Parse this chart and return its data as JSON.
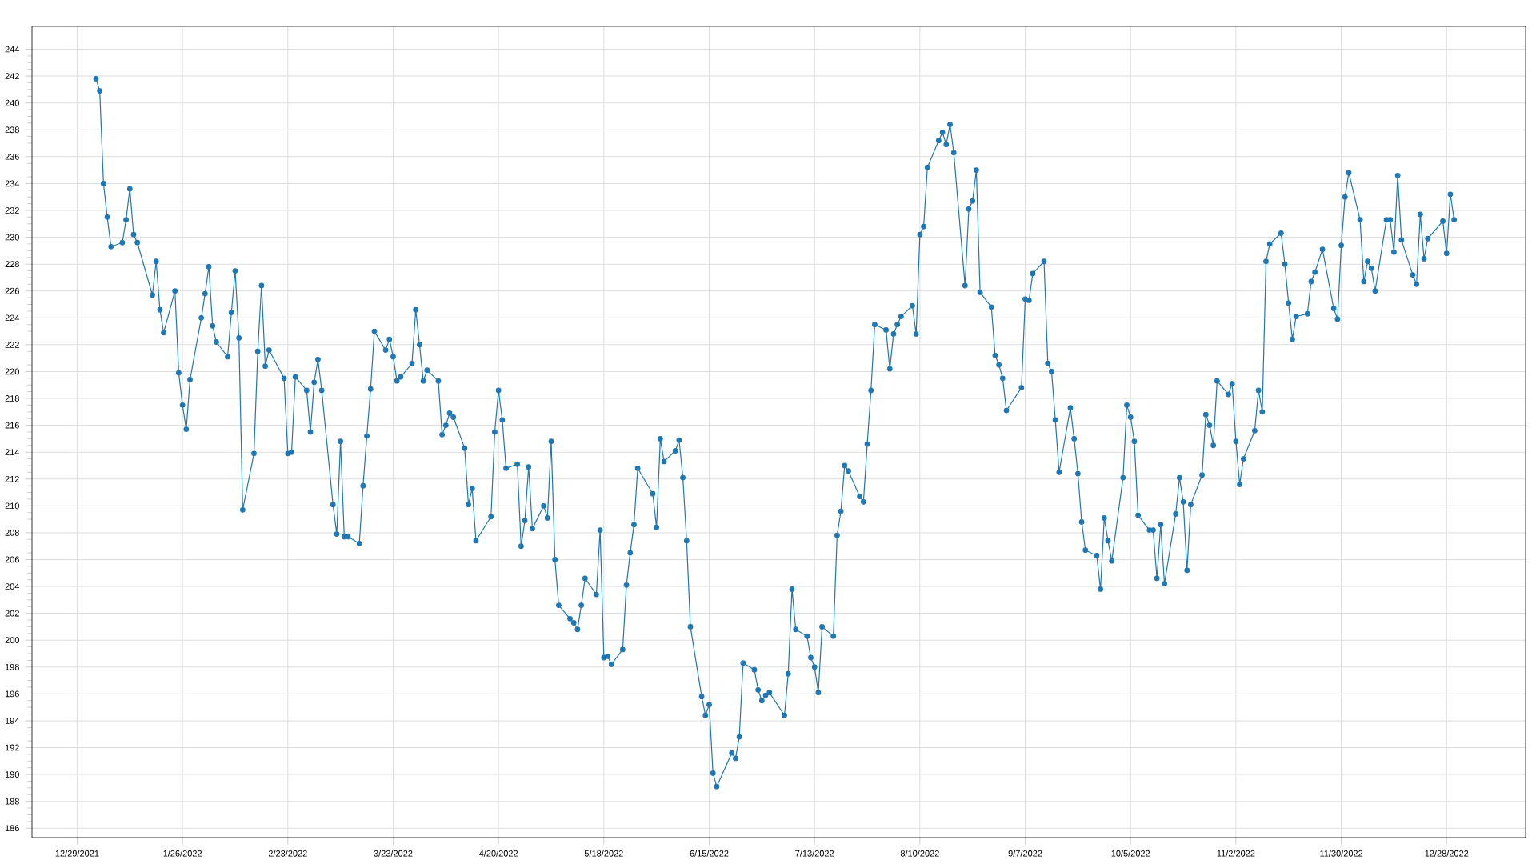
{
  "chart_data": {
    "type": "line",
    "marker": "circle",
    "line_style": "solid",
    "grid": true,
    "xlim": [
      "2021-12-17",
      "2023-01-18"
    ],
    "ylim": [
      185.3,
      245.7
    ],
    "xticks": [
      {
        "value": "2021-12-29",
        "label": "12/29/2021"
      },
      {
        "value": "2022-01-26",
        "label": "1/26/2022"
      },
      {
        "value": "2022-02-23",
        "label": "2/23/2022"
      },
      {
        "value": "2022-03-23",
        "label": "3/23/2022"
      },
      {
        "value": "2022-04-20",
        "label": "4/20/2022"
      },
      {
        "value": "2022-05-18",
        "label": "5/18/2022"
      },
      {
        "value": "2022-06-15",
        "label": "6/15/2022"
      },
      {
        "value": "2022-07-13",
        "label": "7/13/2022"
      },
      {
        "value": "2022-08-10",
        "label": "8/10/2022"
      },
      {
        "value": "2022-09-07",
        "label": "9/7/2022"
      },
      {
        "value": "2022-10-05",
        "label": "10/5/2022"
      },
      {
        "value": "2022-11-02",
        "label": "11/2/2022"
      },
      {
        "value": "2022-11-30",
        "label": "11/30/2022"
      },
      {
        "value": "2022-12-28",
        "label": "12/28/2022"
      }
    ],
    "yticks": [
      186,
      188,
      190,
      192,
      194,
      196,
      198,
      200,
      202,
      204,
      206,
      208,
      210,
      212,
      214,
      216,
      218,
      220,
      222,
      224,
      226,
      228,
      230,
      232,
      234,
      236,
      238,
      240,
      242,
      244
    ],
    "series": [
      {
        "color": "#1f77b4",
        "x": [
          "2022-01-03",
          "2022-01-04",
          "2022-01-05",
          "2022-01-06",
          "2022-01-07",
          "2022-01-10",
          "2022-01-11",
          "2022-01-12",
          "2022-01-13",
          "2022-01-14",
          "2022-01-18",
          "2022-01-19",
          "2022-01-20",
          "2022-01-21",
          "2022-01-24",
          "2022-01-25",
          "2022-01-26",
          "2022-01-27",
          "2022-01-28",
          "2022-01-31",
          "2022-02-01",
          "2022-02-02",
          "2022-02-03",
          "2022-02-04",
          "2022-02-07",
          "2022-02-08",
          "2022-02-09",
          "2022-02-10",
          "2022-02-11",
          "2022-02-14",
          "2022-02-15",
          "2022-02-16",
          "2022-02-17",
          "2022-02-18",
          "2022-02-22",
          "2022-02-23",
          "2022-02-24",
          "2022-02-25",
          "2022-02-28",
          "2022-03-01",
          "2022-03-02",
          "2022-03-03",
          "2022-03-04",
          "2022-03-07",
          "2022-03-08",
          "2022-03-09",
          "2022-03-10",
          "2022-03-11",
          "2022-03-14",
          "2022-03-15",
          "2022-03-16",
          "2022-03-17",
          "2022-03-18",
          "2022-03-21",
          "2022-03-22",
          "2022-03-23",
          "2022-03-24",
          "2022-03-25",
          "2022-03-28",
          "2022-03-29",
          "2022-03-30",
          "2022-03-31",
          "2022-04-01",
          "2022-04-04",
          "2022-04-05",
          "2022-04-06",
          "2022-04-07",
          "2022-04-08",
          "2022-04-11",
          "2022-04-12",
          "2022-04-13",
          "2022-04-14",
          "2022-04-18",
          "2022-04-19",
          "2022-04-20",
          "2022-04-21",
          "2022-04-22",
          "2022-04-25",
          "2022-04-26",
          "2022-04-27",
          "2022-04-28",
          "2022-04-29",
          "2022-05-02",
          "2022-05-03",
          "2022-05-04",
          "2022-05-05",
          "2022-05-06",
          "2022-05-09",
          "2022-05-10",
          "2022-05-11",
          "2022-05-12",
          "2022-05-13",
          "2022-05-16",
          "2022-05-17",
          "2022-05-18",
          "2022-05-19",
          "2022-05-20",
          "2022-05-23",
          "2022-05-24",
          "2022-05-25",
          "2022-05-26",
          "2022-05-27",
          "2022-05-31",
          "2022-06-01",
          "2022-06-02",
          "2022-06-03",
          "2022-06-06",
          "2022-06-07",
          "2022-06-08",
          "2022-06-09",
          "2022-06-10",
          "2022-06-13",
          "2022-06-14",
          "2022-06-15",
          "2022-06-16",
          "2022-06-17",
          "2022-06-21",
          "2022-06-22",
          "2022-06-23",
          "2022-06-24",
          "2022-06-27",
          "2022-06-28",
          "2022-06-29",
          "2022-06-30",
          "2022-07-01",
          "2022-07-05",
          "2022-07-06",
          "2022-07-07",
          "2022-07-08",
          "2022-07-11",
          "2022-07-12",
          "2022-07-13",
          "2022-07-14",
          "2022-07-15",
          "2022-07-18",
          "2022-07-19",
          "2022-07-20",
          "2022-07-21",
          "2022-07-22",
          "2022-07-25",
          "2022-07-26",
          "2022-07-27",
          "2022-07-28",
          "2022-07-29",
          "2022-08-01",
          "2022-08-02",
          "2022-08-03",
          "2022-08-04",
          "2022-08-05",
          "2022-08-08",
          "2022-08-09",
          "2022-08-10",
          "2022-08-11",
          "2022-08-12",
          "2022-08-15",
          "2022-08-16",
          "2022-08-17",
          "2022-08-18",
          "2022-08-19",
          "2022-08-22",
          "2022-08-23",
          "2022-08-24",
          "2022-08-25",
          "2022-08-26",
          "2022-08-29",
          "2022-08-30",
          "2022-08-31",
          "2022-09-01",
          "2022-09-02",
          "2022-09-06",
          "2022-09-07",
          "2022-09-08",
          "2022-09-09",
          "2022-09-12",
          "2022-09-13",
          "2022-09-14",
          "2022-09-15",
          "2022-09-16",
          "2022-09-19",
          "2022-09-20",
          "2022-09-21",
          "2022-09-22",
          "2022-09-23",
          "2022-09-26",
          "2022-09-27",
          "2022-09-28",
          "2022-09-29",
          "2022-09-30",
          "2022-10-03",
          "2022-10-04",
          "2022-10-05",
          "2022-10-06",
          "2022-10-07",
          "2022-10-10",
          "2022-10-11",
          "2022-10-12",
          "2022-10-13",
          "2022-10-14",
          "2022-10-17",
          "2022-10-18",
          "2022-10-19",
          "2022-10-20",
          "2022-10-21",
          "2022-10-24",
          "2022-10-25",
          "2022-10-26",
          "2022-10-27",
          "2022-10-28",
          "2022-10-31",
          "2022-11-01",
          "2022-11-02",
          "2022-11-03",
          "2022-11-04",
          "2022-11-07",
          "2022-11-08",
          "2022-11-09",
          "2022-11-10",
          "2022-11-11",
          "2022-11-14",
          "2022-11-15",
          "2022-11-16",
          "2022-11-17",
          "2022-11-18",
          "2022-11-21",
          "2022-11-22",
          "2022-11-23",
          "2022-11-25",
          "2022-11-28",
          "2022-11-29",
          "2022-11-30",
          "2022-12-01",
          "2022-12-02",
          "2022-12-05",
          "2022-12-06",
          "2022-12-07",
          "2022-12-08",
          "2022-12-09",
          "2022-12-12",
          "2022-12-13",
          "2022-12-14",
          "2022-12-15",
          "2022-12-16",
          "2022-12-19",
          "2022-12-20",
          "2022-12-21",
          "2022-12-22",
          "2022-12-23",
          "2022-12-27",
          "2022-12-28",
          "2022-12-29",
          "2022-12-30"
        ],
        "values": [
          241.8,
          240.9,
          234.0,
          231.5,
          229.3,
          229.6,
          231.3,
          233.6,
          230.2,
          229.6,
          225.7,
          228.2,
          224.6,
          222.9,
          226.0,
          219.9,
          217.5,
          215.7,
          219.4,
          224.0,
          225.8,
          227.8,
          223.4,
          222.2,
          221.1,
          224.4,
          227.5,
          222.5,
          209.7,
          213.9,
          221.5,
          226.4,
          220.4,
          221.6,
          219.5,
          213.9,
          214.0,
          219.6,
          218.6,
          215.5,
          219.2,
          220.9,
          218.6,
          210.1,
          207.9,
          214.8,
          207.7,
          207.7,
          207.2,
          211.5,
          215.2,
          218.7,
          223.0,
          221.6,
          222.4,
          221.1,
          219.3,
          219.6,
          220.6,
          224.6,
          222.0,
          219.3,
          220.1,
          219.3,
          215.3,
          216.0,
          216.9,
          216.6,
          214.3,
          210.1,
          211.3,
          207.4,
          209.2,
          215.5,
          218.6,
          216.4,
          212.8,
          213.1,
          207.0,
          208.9,
          212.9,
          208.3,
          210.0,
          209.1,
          214.8,
          206.0,
          202.6,
          201.6,
          201.3,
          200.8,
          202.6,
          204.6,
          203.4,
          208.2,
          198.7,
          198.8,
          198.2,
          199.3,
          204.1,
          206.5,
          208.6,
          212.8,
          210.9,
          208.4,
          215.0,
          213.3,
          214.1,
          214.9,
          212.1,
          207.4,
          201.0,
          195.8,
          194.4,
          195.2,
          190.1,
          189.1,
          191.6,
          191.2,
          192.8,
          198.3,
          197.8,
          196.3,
          195.5,
          195.9,
          196.1,
          194.4,
          197.5,
          203.8,
          200.8,
          200.3,
          198.7,
          198.0,
          196.1,
          201.0,
          200.3,
          207.8,
          209.6,
          213.0,
          212.6,
          210.7,
          210.3,
          214.6,
          218.6,
          223.5,
          223.1,
          220.2,
          222.8,
          223.5,
          224.1,
          224.9,
          222.8,
          230.2,
          230.8,
          235.2,
          237.2,
          237.8,
          236.9,
          238.4,
          236.3,
          226.4,
          232.1,
          232.7,
          235.0,
          225.9,
          224.8,
          221.2,
          220.5,
          219.5,
          217.1,
          218.8,
          225.4,
          225.3,
          227.3,
          228.2,
          220.6,
          220.0,
          216.4,
          212.5,
          217.3,
          215.0,
          212.4,
          208.8,
          206.7,
          206.3,
          203.8,
          209.1,
          207.4,
          205.9,
          212.1,
          217.5,
          216.6,
          214.8,
          209.3,
          208.2,
          208.2,
          204.6,
          208.6,
          204.2,
          209.4,
          212.1,
          210.3,
          205.2,
          210.1,
          212.3,
          216.8,
          216.0,
          214.5,
          219.3,
          218.3,
          219.1,
          214.8,
          211.6,
          213.5,
          215.6,
          218.6,
          217.0,
          228.2,
          229.5,
          230.3,
          228.0,
          225.1,
          222.4,
          224.1,
          224.3,
          226.7,
          227.4,
          229.1,
          224.7,
          223.9,
          229.4,
          233.0,
          234.8,
          231.3,
          226.7,
          228.2,
          227.7,
          226.0,
          231.3,
          231.3,
          228.9,
          234.6,
          229.8,
          227.2,
          226.5,
          231.7,
          228.4,
          229.9,
          231.2,
          228.8,
          233.2,
          231.3
        ]
      }
    ]
  }
}
